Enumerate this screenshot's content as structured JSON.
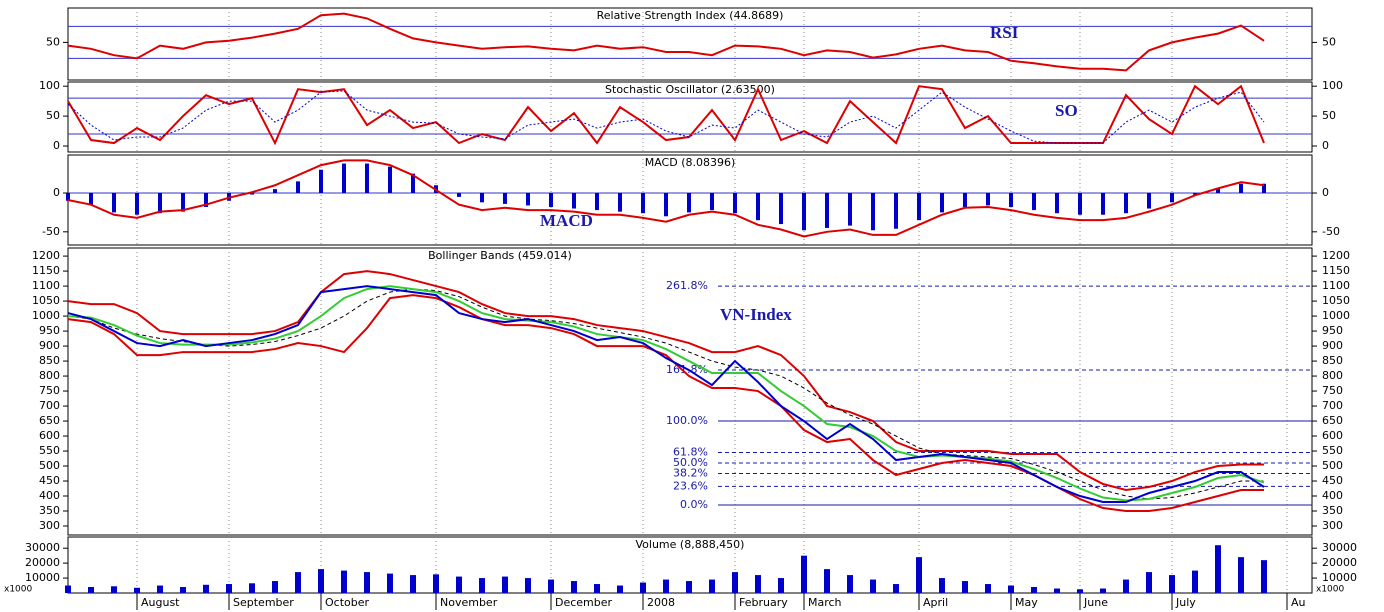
{
  "chart_data": [
    {
      "type": "line",
      "title": "Relative Strength Index (44.8689)",
      "annotation": "RSI",
      "ylim": [
        3,
        93
      ],
      "yticks": [
        50
      ],
      "hlines": [
        30,
        70
      ],
      "series": [
        {
          "color": "#dd0000",
          "values": [
            46,
            42,
            34,
            30,
            46,
            42,
            50,
            52,
            56,
            61,
            67,
            84,
            86,
            80,
            67,
            55,
            50,
            46,
            42,
            44,
            45,
            42,
            40,
            46,
            42,
            44,
            38,
            38,
            34,
            46,
            45,
            42,
            34,
            40,
            38,
            31,
            35,
            42,
            46,
            40,
            38,
            27,
            24,
            20,
            17,
            17,
            15,
            40,
            50,
            56,
            61,
            71,
            52,
            null
          ]
        }
      ]
    },
    {
      "type": "line",
      "title": "Stochastic Oscillator (2.63500)",
      "annotation": "SO",
      "ylim": [
        -10,
        107
      ],
      "yticks": [
        0,
        50,
        100
      ],
      "hlines": [
        20,
        80
      ],
      "series": [
        {
          "color": "#dd0000",
          "values": [
            75,
            10,
            5,
            30,
            10,
            50,
            85,
            70,
            80,
            5,
            95,
            90,
            95,
            35,
            60,
            30,
            40,
            5,
            20,
            10,
            65,
            25,
            55,
            5,
            65,
            40,
            10,
            15,
            60,
            10,
            95,
            10,
            25,
            5,
            75,
            40,
            5,
            100,
            95,
            30,
            50,
            5,
            5,
            5,
            5,
            5,
            85,
            45,
            20,
            100,
            70,
            100,
            5,
            null
          ]
        },
        {
          "color": "#0000cc",
          "style": "dotted",
          "values": [
            70,
            35,
            10,
            15,
            15,
            30,
            60,
            75,
            75,
            40,
            60,
            90,
            92,
            60,
            50,
            40,
            38,
            20,
            15,
            12,
            35,
            40,
            45,
            30,
            40,
            45,
            25,
            15,
            35,
            30,
            60,
            40,
            20,
            15,
            40,
            50,
            30,
            60,
            90,
            65,
            45,
            25,
            8,
            5,
            5,
            5,
            40,
            60,
            40,
            65,
            80,
            90,
            40,
            null
          ]
        }
      ]
    },
    {
      "type": "line",
      "title": "MACD (8.08396)",
      "annotation": "MACD",
      "ylim": [
        -67,
        49
      ],
      "yticks": [
        -50,
        0
      ],
      "hlines": [
        0
      ],
      "series": [
        {
          "color": "#0000cc",
          "kind": "bar",
          "values": [
            -10,
            -15,
            -25,
            -28,
            -26,
            -24,
            -18,
            -10,
            -2,
            5,
            15,
            30,
            38,
            38,
            34,
            25,
            10,
            -5,
            -12,
            -14,
            -16,
            -18,
            -20,
            -22,
            -24,
            -26,
            -30,
            -25,
            -22,
            -26,
            -35,
            -40,
            -48,
            -45,
            -42,
            -48,
            -46,
            -35,
            -25,
            -18,
            -16,
            -18,
            -22,
            -26,
            -28,
            -28,
            -26,
            -20,
            -12,
            -2,
            6,
            12,
            12,
            null
          ]
        },
        {
          "color": "#dd0000",
          "values": [
            -9,
            -15,
            -28,
            -32,
            -24,
            -22,
            -15,
            -6,
            1,
            10,
            23,
            36,
            42,
            42,
            36,
            23,
            4,
            -15,
            -22,
            -19,
            -22,
            -22,
            -24,
            -28,
            -28,
            -32,
            -37,
            -28,
            -24,
            -28,
            -41,
            -47,
            -56,
            -50,
            -47,
            -54,
            -54,
            -41,
            -28,
            -19,
            -18,
            -22,
            -28,
            -32,
            -35,
            -35,
            -32,
            -24,
            -15,
            -3,
            6,
            14,
            10,
            null
          ]
        }
      ]
    },
    {
      "type": "line",
      "title": "Bollinger Bands (459.014)",
      "annotation": "VN-Index",
      "ylim": [
        270,
        1227
      ],
      "yticks": [
        300,
        350,
        400,
        450,
        500,
        550,
        600,
        650,
        700,
        750,
        800,
        850,
        900,
        950,
        1000,
        1050,
        1100,
        1150,
        1200
      ],
      "fib_levels": [
        {
          "value": 1100,
          "label": "261.8%",
          "dashed": true
        },
        {
          "value": 820,
          "label": "161.8%",
          "dashed": true
        },
        {
          "value": 650,
          "label": "100.0%",
          "dashed": false
        },
        {
          "value": 545,
          "label": "61.8%",
          "dashed": true
        },
        {
          "value": 510,
          "label": "50.0%",
          "dashed": true
        },
        {
          "value": 475,
          "label": "38.2%",
          "dashed": true
        },
        {
          "value": 432,
          "label": "23.6%",
          "dashed": true
        },
        {
          "value": 370,
          "label": "0.0%",
          "dashed": false
        }
      ],
      "series": [
        {
          "color": "#dd0000",
          "values": [
            1050,
            1040,
            1040,
            1010,
            950,
            940,
            940,
            940,
            940,
            950,
            980,
            1080,
            1140,
            1150,
            1140,
            1120,
            1100,
            1080,
            1040,
            1010,
            1000,
            1000,
            990,
            970,
            960,
            950,
            930,
            910,
            880,
            880,
            900,
            870,
            800,
            700,
            680,
            650,
            580,
            550,
            550,
            550,
            550,
            540,
            540,
            540,
            480,
            440,
            420,
            430,
            450,
            480,
            500,
            505,
            505,
            null
          ]
        },
        {
          "color": "#dd0000",
          "values": [
            990,
            980,
            940,
            870,
            870,
            880,
            880,
            880,
            880,
            890,
            910,
            900,
            880,
            960,
            1060,
            1070,
            1060,
            1030,
            990,
            970,
            970,
            960,
            940,
            900,
            900,
            900,
            870,
            800,
            760,
            760,
            750,
            700,
            620,
            580,
            590,
            520,
            470,
            490,
            510,
            520,
            510,
            500,
            470,
            430,
            390,
            360,
            350,
            350,
            360,
            380,
            400,
            420,
            420,
            null
          ]
        },
        {
          "color": "#000000",
          "style": "dashed",
          "values": [
            1000,
            990,
            960,
            940,
            925,
            915,
            905,
            900,
            905,
            915,
            935,
            960,
            1000,
            1050,
            1080,
            1090,
            1085,
            1065,
            1030,
            1000,
            990,
            985,
            975,
            960,
            945,
            930,
            910,
            880,
            850,
            830,
            820,
            800,
            760,
            710,
            670,
            640,
            600,
            560,
            540,
            535,
            530,
            525,
            505,
            480,
            450,
            420,
            400,
            390,
            395,
            410,
            430,
            450,
            450,
            null
          ]
        },
        {
          "color": "#33cc33",
          "values": [
            1000,
            995,
            970,
            935,
            910,
            905,
            905,
            905,
            912,
            925,
            950,
            1000,
            1060,
            1090,
            1100,
            1090,
            1080,
            1050,
            1010,
            990,
            985,
            980,
            965,
            940,
            930,
            920,
            890,
            850,
            810,
            810,
            810,
            750,
            700,
            640,
            630,
            600,
            550,
            530,
            535,
            530,
            525,
            515,
            490,
            460,
            425,
            395,
            385,
            390,
            410,
            430,
            460,
            470,
            445,
            null
          ]
        },
        {
          "color": "#0000cc",
          "values": [
            1010,
            990,
            950,
            910,
            900,
            920,
            900,
            910,
            920,
            940,
            970,
            1080,
            1090,
            1100,
            1090,
            1080,
            1070,
            1010,
            990,
            980,
            990,
            970,
            950,
            920,
            930,
            910,
            860,
            820,
            770,
            850,
            780,
            700,
            650,
            590,
            640,
            590,
            520,
            530,
            540,
            530,
            520,
            510,
            470,
            430,
            400,
            380,
            380,
            410,
            430,
            450,
            480,
            480,
            430,
            null
          ]
        }
      ]
    },
    {
      "type": "bar",
      "title": "Volume (8,888,450)",
      "axis_note": "x1000",
      "ylim": [
        0,
        37500
      ],
      "yticks": [
        10000,
        20000,
        30000
      ],
      "categories": [
        null,
        null,
        null,
        "August",
        null,
        null,
        null,
        "September",
        null,
        null,
        null,
        "October",
        null,
        null,
        null,
        null,
        "November",
        null,
        null,
        null,
        null,
        "December",
        null,
        null,
        null,
        "2008",
        null,
        null,
        null,
        "February",
        null,
        null,
        "March",
        null,
        null,
        null,
        null,
        "April",
        null,
        null,
        null,
        "May",
        null,
        null,
        "June",
        null,
        null,
        null,
        "July",
        null,
        null,
        null,
        null,
        "Au"
      ],
      "series": [
        {
          "color": "#0000cc",
          "values": [
            5000,
            4000,
            4500,
            3500,
            5000,
            4000,
            5500,
            6000,
            6500,
            8000,
            14000,
            16000,
            15000,
            14000,
            13000,
            12000,
            12500,
            11000,
            10000,
            11000,
            10000,
            9000,
            8000,
            6000,
            5000,
            7000,
            9000,
            8000,
            9000,
            14000,
            12000,
            10000,
            25000,
            16000,
            12000,
            9000,
            6000,
            24000,
            10000,
            8000,
            6000,
            5000,
            4000,
            3000,
            2500,
            3000,
            9000,
            14000,
            12000,
            15000,
            32000,
            24000,
            22000,
            null
          ]
        }
      ]
    }
  ]
}
